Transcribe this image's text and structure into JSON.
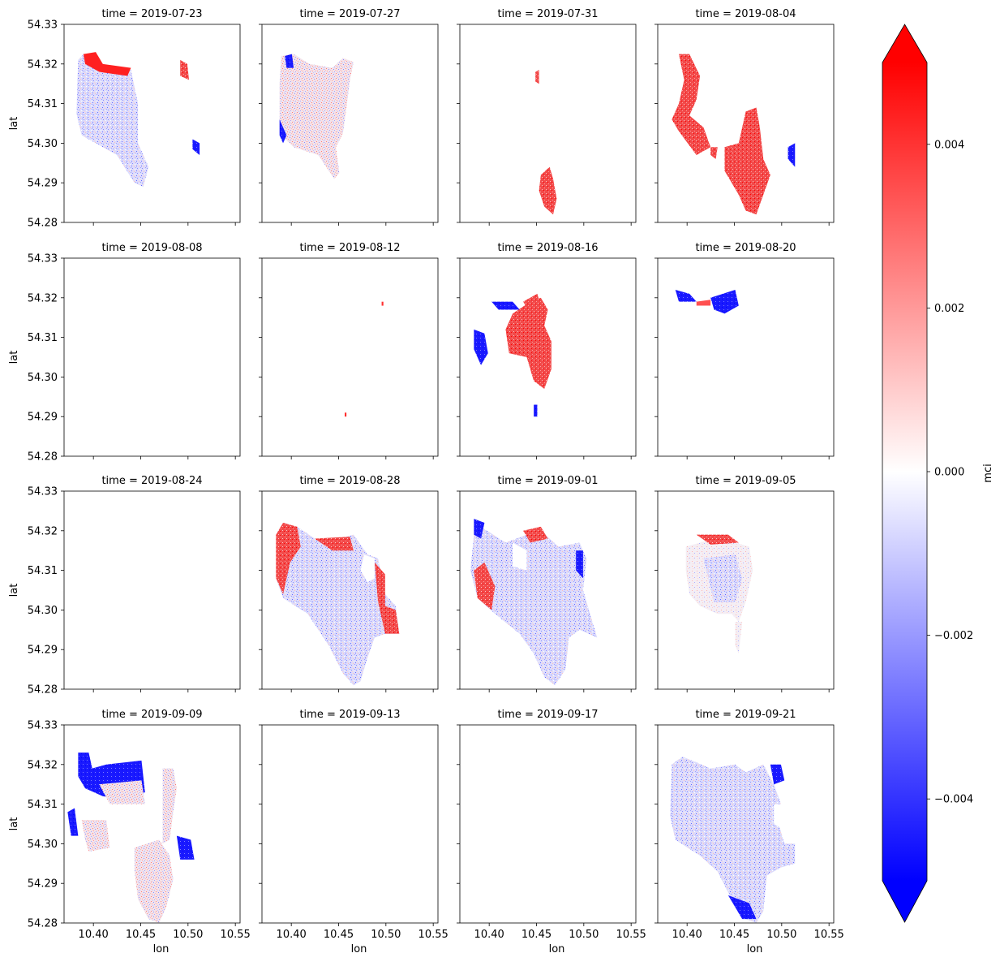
{
  "chart_data": {
    "type": "heatmap",
    "layout": "facet-grid 4x4",
    "x_axis": {
      "label": "lon",
      "ticks": [
        "10.40",
        "10.45",
        "10.50",
        "10.55"
      ],
      "tick_values": [
        10.4,
        10.45,
        10.5,
        10.55
      ],
      "range": [
        10.369,
        10.555
      ]
    },
    "y_axis": {
      "label": "lat",
      "ticks": [
        "54.33",
        "54.32",
        "54.31",
        "54.30",
        "54.29",
        "54.28"
      ],
      "tick_values": [
        54.33,
        54.32,
        54.31,
        54.3,
        54.29,
        54.28
      ],
      "range": [
        54.28,
        54.33
      ]
    },
    "colorbar": {
      "label": "mci",
      "ticks": [
        "0.004",
        "0.002",
        "0.000",
        "−0.002",
        "−0.004"
      ],
      "tick_values": [
        0.004,
        0.002,
        0.0,
        -0.002,
        -0.004
      ],
      "range": [
        -0.005,
        0.005
      ],
      "colormap": "bwr",
      "extend": "both",
      "colors": {
        "low": "#0000ff",
        "mid": "#ffffff",
        "high": "#ff0000"
      }
    },
    "panels": [
      {
        "title": "time = 2019-07-23",
        "coverage": "partial",
        "dominant": "mixed"
      },
      {
        "title": "time = 2019-07-27",
        "coverage": "partial",
        "dominant": "mixed"
      },
      {
        "title": "time = 2019-07-31",
        "coverage": "sparse",
        "dominant": "positive"
      },
      {
        "title": "time = 2019-08-04",
        "coverage": "partial",
        "dominant": "positive"
      },
      {
        "title": "time = 2019-08-08",
        "coverage": "none",
        "dominant": "none"
      },
      {
        "title": "time = 2019-08-12",
        "coverage": "trace",
        "dominant": "positive"
      },
      {
        "title": "time = 2019-08-16",
        "coverage": "partial",
        "dominant": "positive"
      },
      {
        "title": "time = 2019-08-20",
        "coverage": "sparse",
        "dominant": "negative"
      },
      {
        "title": "time = 2019-08-24",
        "coverage": "none",
        "dominant": "none"
      },
      {
        "title": "time = 2019-08-28",
        "coverage": "full",
        "dominant": "mixed"
      },
      {
        "title": "time = 2019-09-01",
        "coverage": "full",
        "dominant": "mixed"
      },
      {
        "title": "time = 2019-09-05",
        "coverage": "partial",
        "dominant": "near-zero"
      },
      {
        "title": "time = 2019-09-09",
        "coverage": "partial",
        "dominant": "mixed"
      },
      {
        "title": "time = 2019-09-13",
        "coverage": "none",
        "dominant": "none"
      },
      {
        "title": "time = 2019-09-17",
        "coverage": "none",
        "dominant": "none"
      },
      {
        "title": "time = 2019-09-21",
        "coverage": "full",
        "dominant": "negative"
      }
    ]
  }
}
